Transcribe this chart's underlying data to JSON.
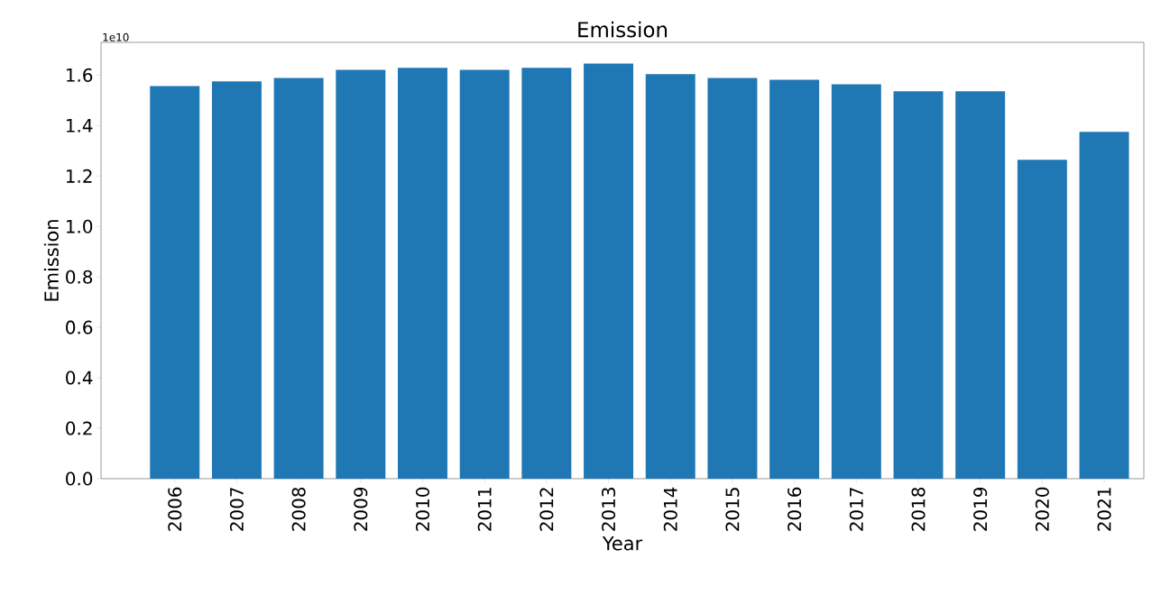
{
  "chart_data": {
    "type": "bar",
    "title": "Emission",
    "xlabel": "Year",
    "ylabel": "Emission",
    "annotations": [
      "1e10"
    ],
    "categories": [
      "2006",
      "2007",
      "2008",
      "2009",
      "2010",
      "2011",
      "2012",
      "2013",
      "2014",
      "2015",
      "2016",
      "2017",
      "2018",
      "2019",
      "2020",
      "2021"
    ],
    "values": [
      1.557,
      1.575,
      1.589,
      1.621,
      1.629,
      1.621,
      1.629,
      1.646,
      1.604,
      1.589,
      1.582,
      1.564,
      1.536,
      1.536,
      1.264,
      1.375
    ],
    "color": "#1f77b4",
    "ylim": [
      0,
      1.73
    ],
    "yticks": [
      {
        "value": 0,
        "label": "0.0"
      },
      0.2,
      0.4,
      0.6,
      0.8,
      {
        "value": 1,
        "label": "1.0"
      },
      1.2,
      1.4,
      1.6
    ]
  }
}
